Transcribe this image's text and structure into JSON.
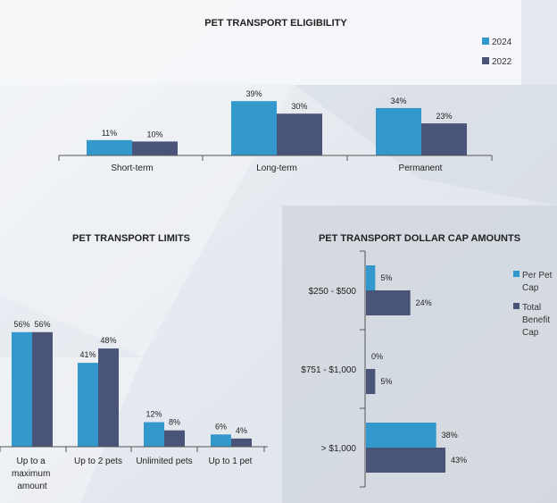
{
  "colors": {
    "series_2024": "#3399cc",
    "series_2022": "#4a5478",
    "per_pet_cap": "#3399cc",
    "total_benefit_cap": "#4a5478",
    "text": "#222222",
    "axis": "#555555"
  },
  "chart_data": [
    {
      "type": "bar",
      "title": "PET TRANSPORT ELIGIBILITY",
      "categories": [
        "Short-term",
        "Long-term",
        "Permanent"
      ],
      "series": [
        {
          "name": "2024",
          "values": [
            11,
            39,
            34
          ],
          "labels": [
            "11%",
            "39%",
            "34%"
          ]
        },
        {
          "name": "2022",
          "values": [
            10,
            30,
            23
          ],
          "labels": [
            "10%",
            "30%",
            "23%"
          ]
        }
      ],
      "ylim": [
        0,
        45
      ],
      "legend": "top-right"
    },
    {
      "type": "bar",
      "title": "PET TRANSPORT LIMITS",
      "categories": [
        "Up to a maximum amount",
        "Up to 2 pets",
        "Unlimited pets",
        "Up to 1 pet"
      ],
      "category_lines": [
        [
          "Up to a",
          "maximum",
          "amount"
        ],
        [
          "Up to 2 pets"
        ],
        [
          "Unlimited pets"
        ],
        [
          "Up to 1 pet"
        ]
      ],
      "series": [
        {
          "name": "2024",
          "values": [
            56,
            41,
            12,
            6
          ],
          "labels": [
            "56%",
            "41%",
            "12%",
            "6%"
          ]
        },
        {
          "name": "2022",
          "values": [
            56,
            48,
            8,
            4
          ],
          "labels": [
            "56%",
            "48%",
            "8%",
            "4%"
          ]
        }
      ],
      "ylim": [
        0,
        65
      ]
    },
    {
      "type": "bar",
      "orientation": "horizontal",
      "title": "PET TRANSPORT DOLLAR CAP AMOUNTS",
      "categories": [
        "$250 - $500",
        "$751 - $1,000",
        "> $1,000"
      ],
      "series": [
        {
          "name": "Per Pet Cap",
          "legend_lines": [
            "Per Pet",
            "Cap"
          ],
          "values": [
            5,
            0,
            38
          ],
          "labels": [
            "5%",
            "0%",
            "38%"
          ]
        },
        {
          "name": "Total Benefit Cap",
          "legend_lines": [
            "Total",
            "Benefit",
            "Cap"
          ],
          "values": [
            24,
            5,
            43
          ],
          "labels": [
            "24%",
            "5%",
            "43%"
          ]
        }
      ],
      "xlim": [
        0,
        50
      ],
      "legend": "right"
    }
  ]
}
